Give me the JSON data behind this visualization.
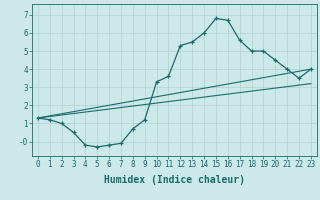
{
  "title": "",
  "xlabel": "Humidex (Indice chaleur)",
  "background_color": "#cce8e8",
  "line_color": "#1a6b6b",
  "grid_color": "#b0d0d0",
  "xlim": [
    -0.5,
    23.5
  ],
  "ylim": [
    -0.8,
    7.6
  ],
  "yticks": [
    0,
    1,
    2,
    3,
    4,
    5,
    6,
    7
  ],
  "ytick_labels": [
    "-0",
    "1",
    "2",
    "3",
    "4",
    "5",
    "6",
    "7"
  ],
  "xticks": [
    0,
    1,
    2,
    3,
    4,
    5,
    6,
    7,
    8,
    9,
    10,
    11,
    12,
    13,
    14,
    15,
    16,
    17,
    18,
    19,
    20,
    21,
    22,
    23
  ],
  "line1_x": [
    0,
    1,
    2,
    3,
    4,
    5,
    6,
    7,
    8,
    9,
    10,
    11,
    12,
    13,
    14,
    15,
    16,
    17,
    18,
    19,
    20,
    21,
    22,
    23
  ],
  "line1_y": [
    1.3,
    1.2,
    1.0,
    0.5,
    -0.2,
    -0.3,
    -0.2,
    -0.1,
    0.7,
    1.2,
    3.3,
    3.6,
    5.3,
    5.5,
    6.0,
    6.8,
    6.7,
    5.6,
    5.0,
    5.0,
    4.5,
    4.0,
    3.5,
    4.0
  ],
  "line2_x": [
    0,
    23
  ],
  "line2_y": [
    1.3,
    4.0
  ],
  "line3_x": [
    0,
    23
  ],
  "line3_y": [
    1.3,
    3.2
  ],
  "tick_fontsize": 5.5,
  "xlabel_fontsize": 7.0
}
